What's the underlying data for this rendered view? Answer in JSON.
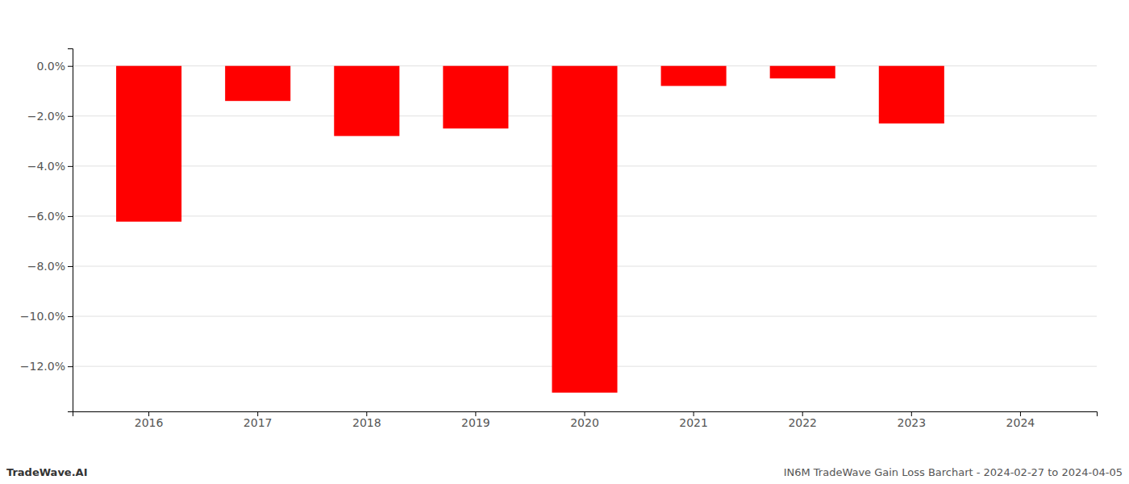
{
  "chart_data": {
    "type": "bar",
    "categories": [
      "2016",
      "2017",
      "2018",
      "2019",
      "2020",
      "2021",
      "2022",
      "2023",
      "2024"
    ],
    "values": [
      -6.22,
      -1.4,
      -2.8,
      -2.5,
      -13.05,
      -0.8,
      -0.5,
      -2.3,
      null
    ],
    "color": "#ff0000",
    "ylim": [
      -13.8,
      0.7
    ],
    "yticks": [
      {
        "value": 0.0,
        "label": "0.0%"
      },
      {
        "value": -2.0,
        "label": "−2.0%"
      },
      {
        "value": -4.0,
        "label": "−4.0%"
      },
      {
        "value": -6.0,
        "label": "−6.0%"
      },
      {
        "value": -8.0,
        "label": "−8.0%"
      },
      {
        "value": -10.0,
        "label": "−10.0%"
      },
      {
        "value": -12.0,
        "label": "−12.0%"
      }
    ],
    "grid": true,
    "annotations": [
      "TradeWave.AI",
      "IN6M TradeWave Gain Loss Barchart - 2024-02-27 to 2024-04-05"
    ]
  }
}
